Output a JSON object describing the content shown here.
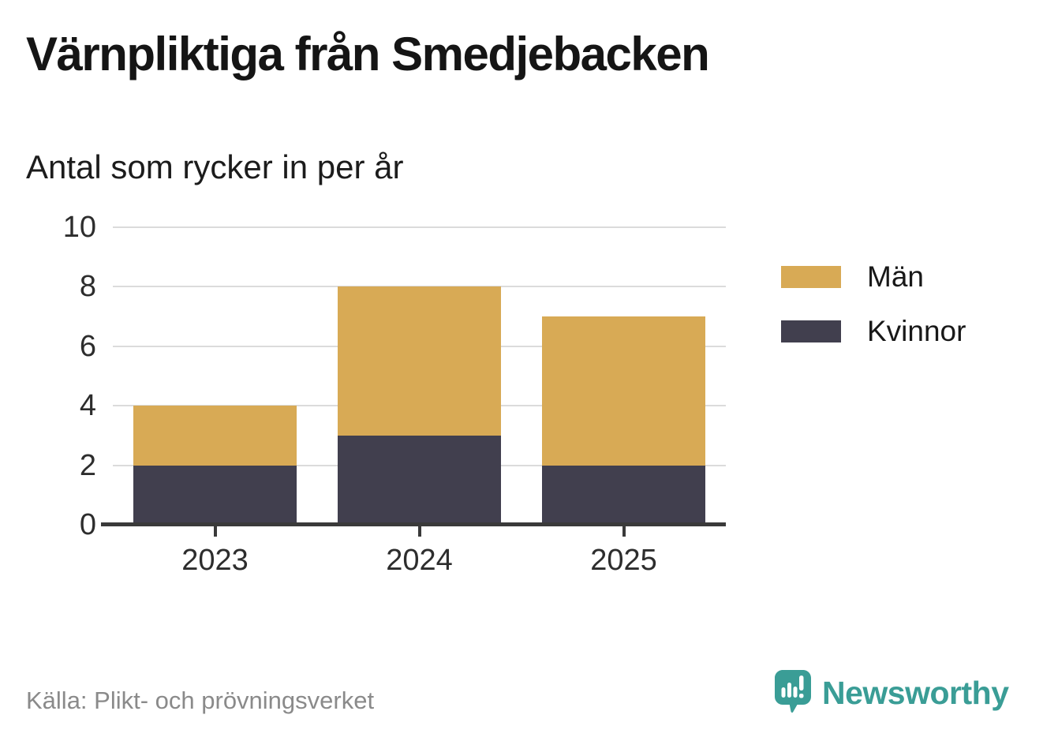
{
  "header": {
    "title": "Värnpliktiga från Smedjebacken",
    "subtitle": "Antal som rycker in per år"
  },
  "chart_data": {
    "type": "bar",
    "stacked": true,
    "title": "Värnpliktiga från Smedjebacken",
    "subtitle": "Antal som rycker in per år",
    "categories": [
      "2023",
      "2024",
      "2025"
    ],
    "series": [
      {
        "name": "Kvinnor",
        "color": "#413F4E",
        "values": [
          2,
          3,
          2
        ]
      },
      {
        "name": "Män",
        "color": "#D8AA55",
        "values": [
          2,
          5,
          5
        ]
      }
    ],
    "stack_totals": [
      4,
      8,
      7
    ],
    "xlabel": "",
    "ylabel": "",
    "ylim": [
      0,
      10
    ],
    "yticks": [
      0,
      2,
      4,
      6,
      8,
      10
    ],
    "grid": true,
    "legend_position": "right"
  },
  "legend": {
    "items": [
      {
        "label": "Män",
        "color": "#D8AA55"
      },
      {
        "label": "Kvinnor",
        "color": "#413F4E"
      }
    ]
  },
  "footer": {
    "source": "Källa: Plikt- och prövningsverket",
    "brand_name": "Newsworthy"
  },
  "colors": {
    "men": "#D8AA55",
    "women": "#413F4E",
    "axis": "#3A3A3A",
    "gridline": "#DBDBDB",
    "tick_label": "#2D2D2D",
    "source_text": "#8A8A8A",
    "brand_teal": "#3A9D96"
  }
}
